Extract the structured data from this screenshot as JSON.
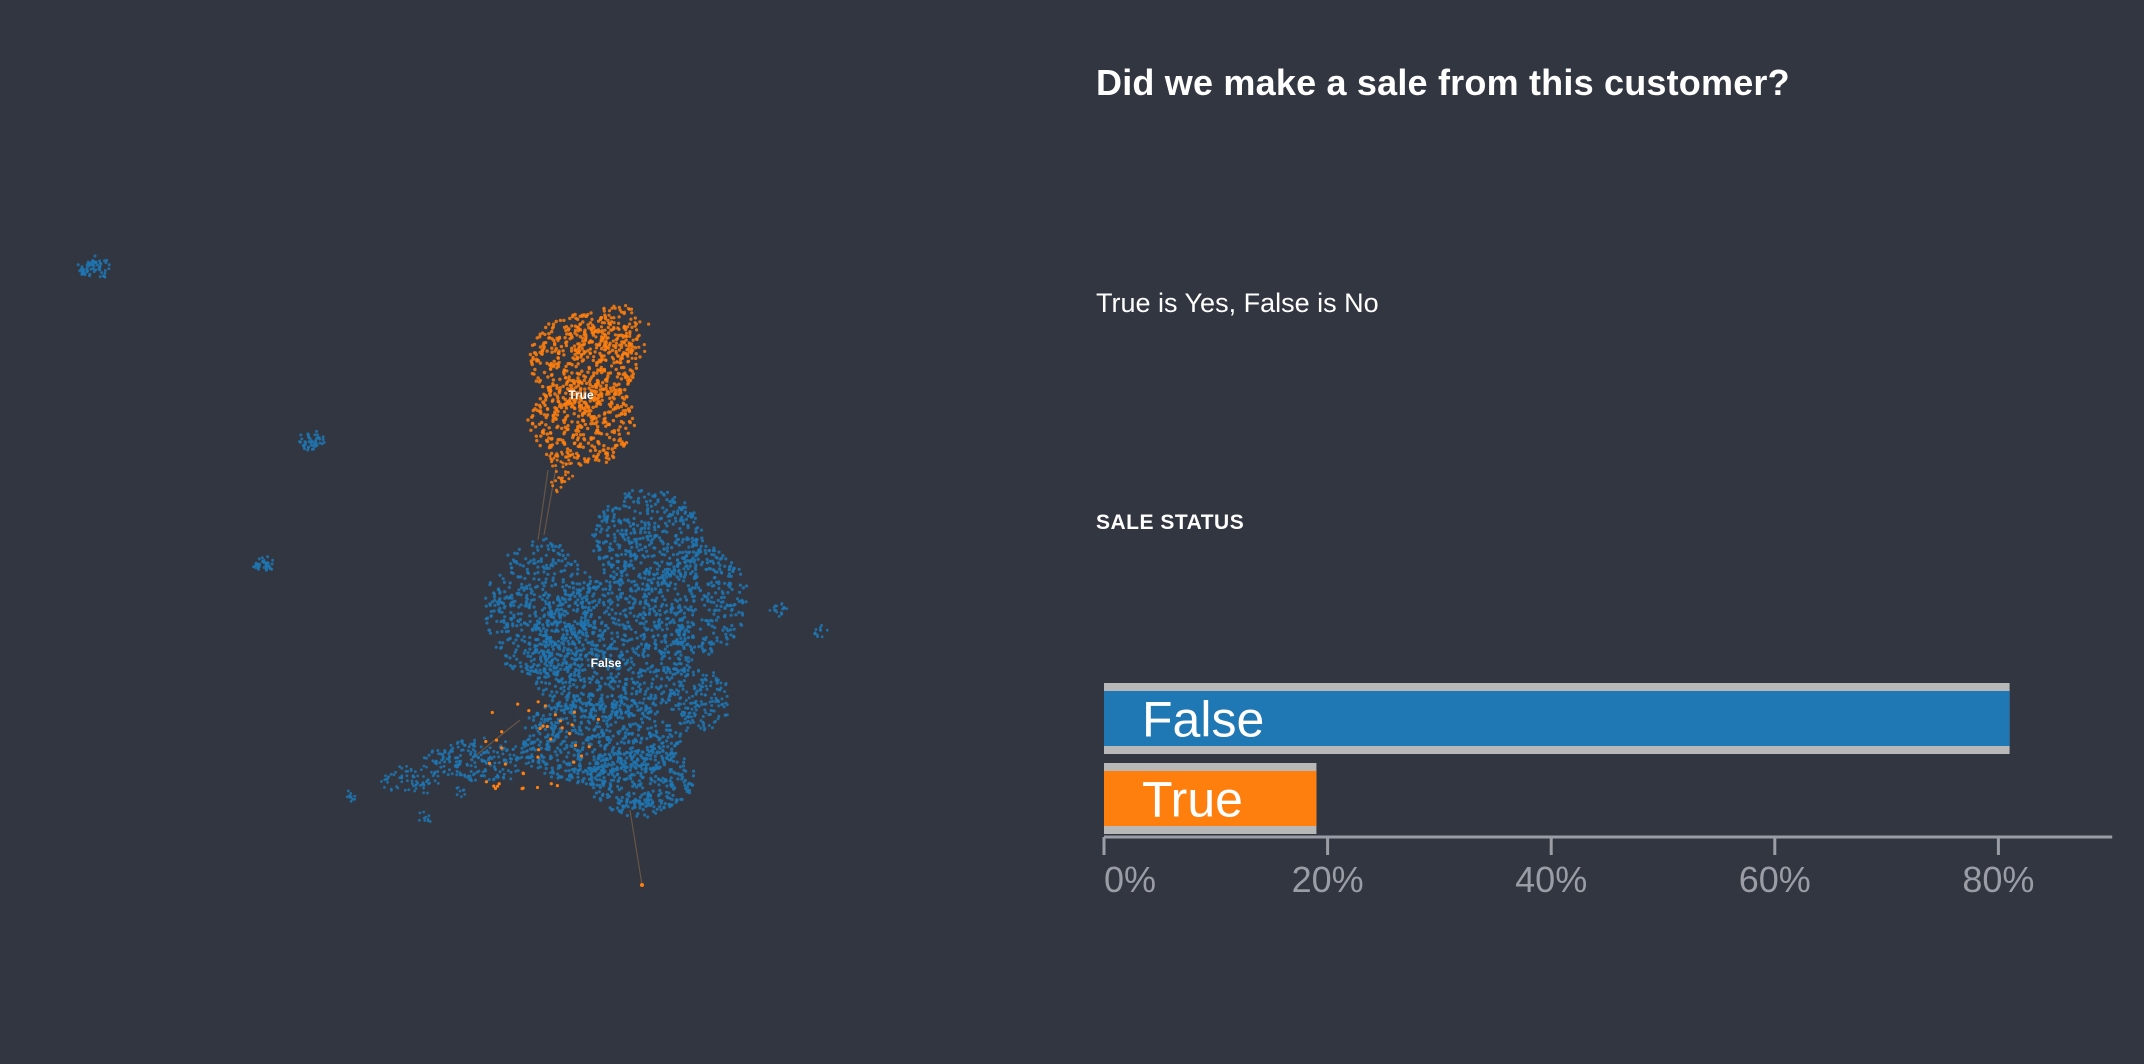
{
  "panel": {
    "title": "Did we make a sale from this customer?",
    "subtitle": "True is Yes, False is No",
    "section_label": "SALE STATUS"
  },
  "colors": {
    "background": "#323641",
    "false_series": "#1f77b4",
    "true_series": "#ff7f0e",
    "bar_border": "#b8b8b8",
    "axis": "#9a9da5"
  },
  "chart_data": [
    {
      "type": "scatter",
      "title": "",
      "clusters": [
        {
          "label": "True",
          "color": "#ff7f0e"
        },
        {
          "label": "False",
          "color": "#1f77b4"
        }
      ]
    },
    {
      "type": "bar",
      "orientation": "horizontal",
      "title": "SALE STATUS",
      "categories": [
        "False",
        "True"
      ],
      "values": [
        81,
        19
      ],
      "xlim": [
        0,
        90
      ],
      "x_ticks": [
        0,
        20,
        40,
        60,
        80
      ],
      "x_tick_labels": [
        "0%",
        "20%",
        "40%",
        "60%",
        "80%"
      ],
      "colors": [
        "#1f77b4",
        "#ff7f0e"
      ]
    }
  ]
}
